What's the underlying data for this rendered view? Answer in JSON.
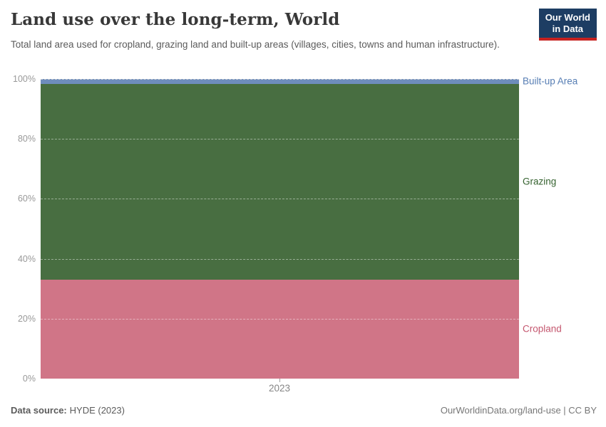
{
  "header": {
    "title": "Land use over the long-term, World",
    "subtitle": "Total land area used for cropland, grazing land and built-up areas (villages, cities, towns and human infrastructure).",
    "logo": {
      "line1": "Our World",
      "line2": "in Data",
      "bg_color": "#1d3d63",
      "accent_color": "#c72220"
    }
  },
  "chart_data": {
    "type": "area",
    "stacking": "relative-100-percent",
    "x": [
      2023
    ],
    "x_tick_label": "2023",
    "ylim": [
      0,
      100
    ],
    "grid": "dashed horizontal gridlines at every 20%",
    "legend_position": "right edge, inline labels next to bands",
    "series": [
      {
        "name": "Cropland",
        "share_percent": 33.1,
        "fill_color": "#d07587",
        "label_color": "#c4566e"
      },
      {
        "name": "Grazing",
        "share_percent": 65.3,
        "fill_color": "#486e41",
        "label_color": "#35622f"
      },
      {
        "name": "Built-up Area",
        "share_percent": 1.6,
        "fill_color": "#6e8dbc",
        "label_color": "#577eb4"
      }
    ],
    "y_ticks": [
      {
        "value": 0,
        "label": "0%"
      },
      {
        "value": 20,
        "label": "20%"
      },
      {
        "value": 40,
        "label": "40%"
      },
      {
        "value": 60,
        "label": "60%"
      },
      {
        "value": 80,
        "label": "80%"
      },
      {
        "value": 100,
        "label": "100%"
      }
    ]
  },
  "footer": {
    "source_label": "Data source:",
    "source_value": "HYDE (2023)",
    "attribution": "OurWorldinData.org/land-use | CC BY"
  }
}
